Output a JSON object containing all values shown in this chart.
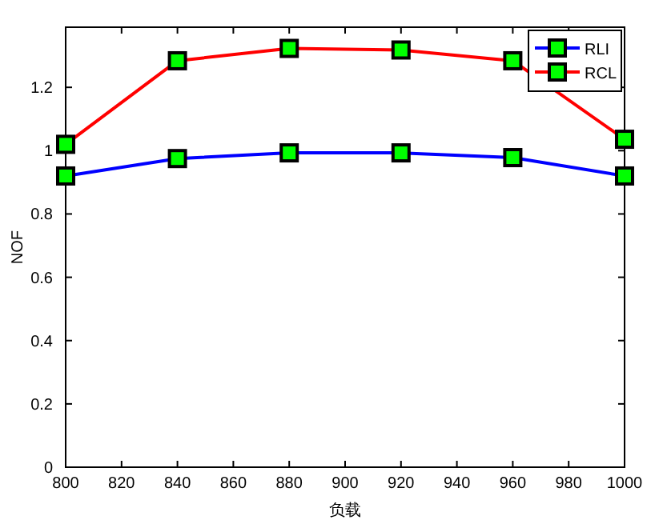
{
  "chart_data": {
    "type": "line",
    "xlabel": "负载",
    "ylabel": "NOF",
    "x": [
      800,
      840,
      880,
      920,
      960,
      1000
    ],
    "series": [
      {
        "name": "RLI",
        "color": "#0000ff",
        "values": [
          0.92,
          0.975,
          0.993,
          0.993,
          0.978,
          0.92
        ]
      },
      {
        "name": "RCL",
        "color": "#ff0000",
        "values": [
          1.02,
          1.284,
          1.323,
          1.318,
          1.284,
          1.036
        ]
      }
    ],
    "xlim": [
      800,
      1000
    ],
    "xticks": [
      800,
      820,
      840,
      860,
      880,
      900,
      920,
      940,
      960,
      980,
      1000
    ],
    "ylim": [
      0,
      1.39
    ],
    "yticks": [
      0,
      0.2,
      0.4,
      0.6,
      0.8,
      1,
      1.2
    ],
    "marker": "square",
    "line_style": "solid",
    "grid": false,
    "legend": "top right"
  }
}
